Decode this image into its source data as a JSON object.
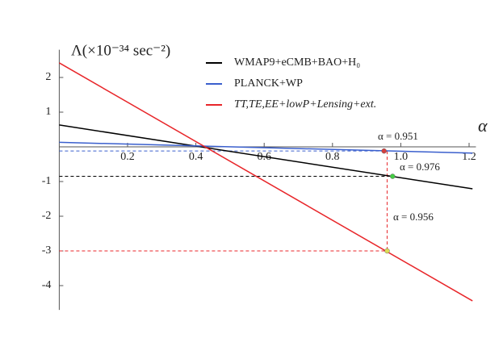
{
  "chart_data": {
    "type": "line",
    "y_label": "Λ(×10⁻³⁴ sec⁻²)",
    "x_label": "α",
    "xlim": [
      0,
      1.22
    ],
    "ylim": [
      -4.7,
      2.8
    ],
    "xticks": [
      0.2,
      0.4,
      0.6,
      0.8,
      {
        "value": 1,
        "label": "1.0"
      },
      1.2
    ],
    "yticks": [
      -4,
      -3,
      -2,
      -1,
      1,
      2
    ],
    "series": [
      {
        "name": "WMAP9+eCMB+BAO+H₀",
        "color": "#000000",
        "x": [
          0,
          1.21
        ],
        "values": [
          0.63,
          -1.21
        ]
      },
      {
        "name": "PLANCK+WP",
        "color": "#3a5fcd",
        "x": [
          0,
          1.21
        ],
        "values": [
          0.13,
          -0.18
        ]
      },
      {
        "name": "TT,TE,EE+lowP+Lensing+ext.",
        "color": "#e8262a",
        "x": [
          0,
          1.21
        ],
        "values": [
          2.42,
          -4.44
        ]
      }
    ],
    "points": [
      {
        "label": "α = 0.951",
        "x": 0.951,
        "y": -0.12,
        "color": "#d43f3f",
        "guide_color": "#3a5fcd"
      },
      {
        "label": "α = 0.976",
        "x": 0.976,
        "y": -0.85,
        "color": "#44cc44",
        "guide_color": "#000000"
      },
      {
        "label": "α = 0.956",
        "x": 0.96,
        "y": -3.0,
        "color": "#dddd55",
        "guide_color": "#e8262a"
      }
    ]
  }
}
